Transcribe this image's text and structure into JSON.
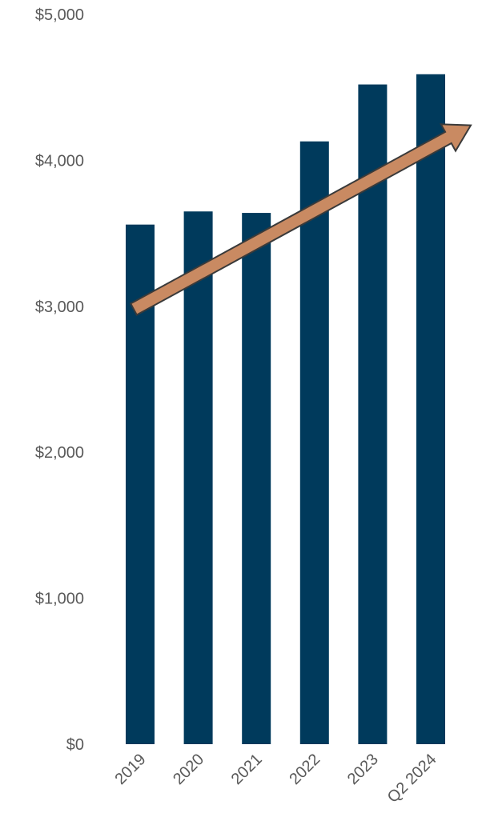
{
  "chart_data": {
    "type": "bar",
    "title": "",
    "xlabel": "",
    "ylabel": "",
    "categories": [
      "2019",
      "2020",
      "2021",
      "2022",
      "2023",
      "Q2 2024"
    ],
    "values": [
      3560,
      3650,
      3640,
      4130,
      4520,
      4590
    ],
    "ylim": [
      0,
      5000
    ],
    "y_ticks": [
      0,
      1000,
      2000,
      3000,
      4000,
      5000
    ],
    "y_tick_labels": [
      "$0",
      "$1,000",
      "$2,000",
      "$3,000",
      "$4,000",
      "$5,000"
    ],
    "grid": false,
    "legend": "none",
    "bar_color": "#003a5c",
    "annotations": [
      {
        "type": "trend-arrow",
        "color": "#c98a62",
        "outline": "#3a3a3a",
        "from": {
          "category": "2019",
          "value": 2980
        },
        "to": {
          "category": "Q2 2024",
          "value": 4240
        }
      }
    ]
  }
}
